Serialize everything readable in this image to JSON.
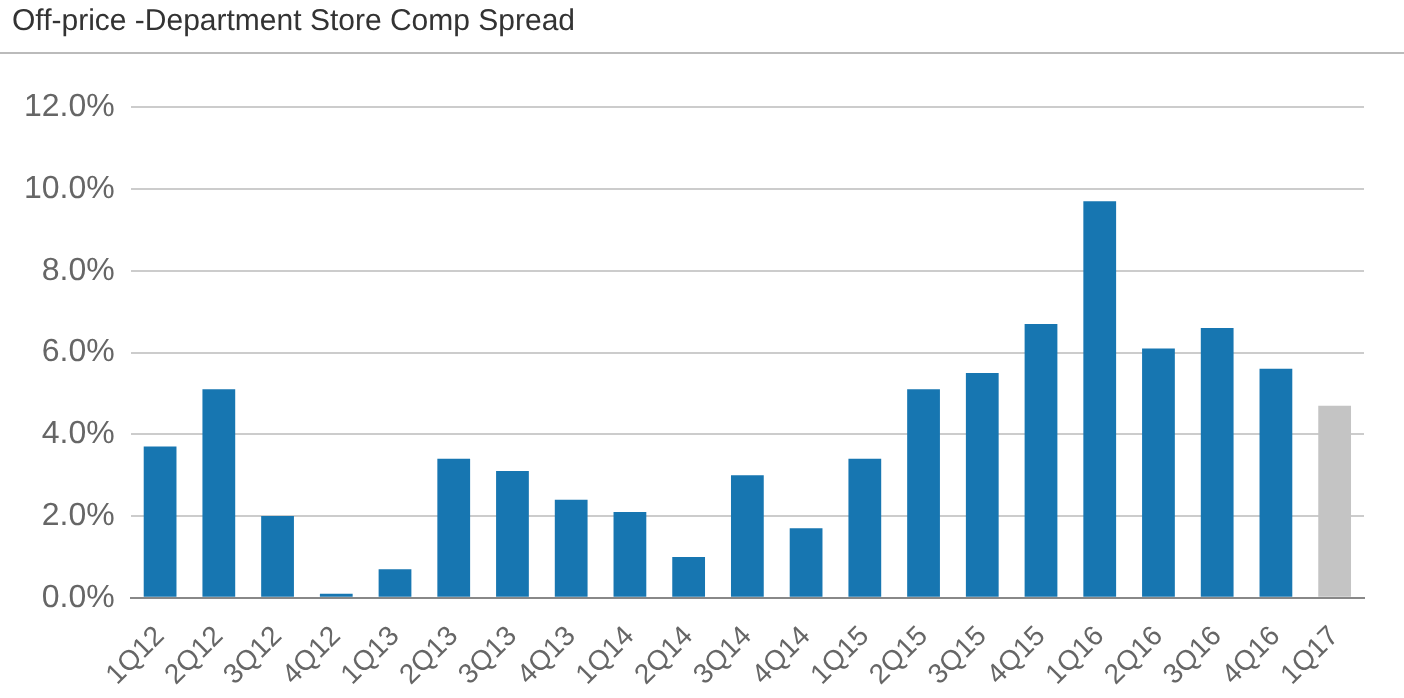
{
  "chart_data": {
    "type": "bar",
    "title": "Off-price -Department Store Comp Spread",
    "categories": [
      "1Q12",
      "2Q12",
      "3Q12",
      "4Q12",
      "1Q13",
      "2Q13",
      "3Q13",
      "4Q13",
      "1Q14",
      "2Q14",
      "3Q14",
      "4Q14",
      "1Q15",
      "2Q15",
      "3Q15",
      "4Q15",
      "1Q16",
      "2Q16",
      "3Q16",
      "4Q16",
      "1Q17"
    ],
    "values": [
      3.7,
      5.1,
      2.0,
      0.1,
      0.7,
      3.4,
      3.1,
      2.4,
      2.1,
      1.0,
      3.0,
      1.7,
      3.4,
      5.1,
      5.5,
      6.7,
      9.7,
      6.1,
      6.6,
      5.6,
      4.7
    ],
    "colors": [
      "#1776b1",
      "#1776b1",
      "#1776b1",
      "#1776b1",
      "#1776b1",
      "#1776b1",
      "#1776b1",
      "#1776b1",
      "#1776b1",
      "#1776b1",
      "#1776b1",
      "#1776b1",
      "#1776b1",
      "#1776b1",
      "#1776b1",
      "#1776b1",
      "#1776b1",
      "#1776b1",
      "#1776b1",
      "#1776b1",
      "#c4c4c4"
    ],
    "ylim": [
      0,
      12
    ],
    "yticks": [
      {
        "value": 0,
        "label": "0.0%"
      },
      {
        "value": 2,
        "label": "2.0%"
      },
      {
        "value": 4,
        "label": "4.0%"
      },
      {
        "value": 6,
        "label": "6.0%"
      },
      {
        "value": 8,
        "label": "8.0%"
      },
      {
        "value": 10,
        "label": "10.0%"
      },
      {
        "value": 12,
        "label": "12.0%"
      }
    ],
    "grid": "y"
  }
}
